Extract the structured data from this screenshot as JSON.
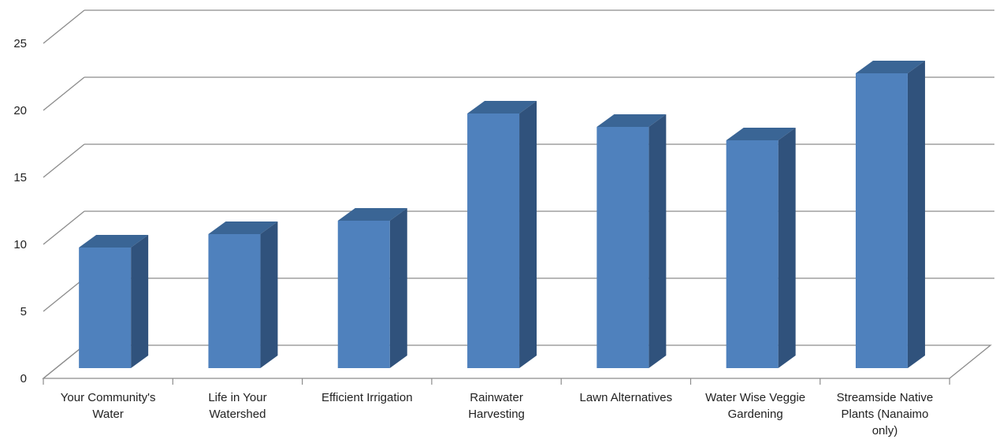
{
  "chart_data": {
    "type": "bar",
    "title": "",
    "xlabel": "",
    "ylabel": "",
    "ylim": [
      0,
      25
    ],
    "yticks": [
      0,
      5,
      10,
      15,
      20,
      25
    ],
    "grid": true,
    "legend": "none",
    "style": "3d-column",
    "categories": [
      [
        "Your Community's",
        "Water"
      ],
      [
        "Life in Your",
        "Watershed"
      ],
      [
        "Efficient Irrigation"
      ],
      [
        "Rainwater",
        "Harvesting"
      ],
      [
        "Lawn Alternatives"
      ],
      [
        "Water Wise Veggie",
        "Gardening"
      ],
      [
        "Streamside Native",
        "Plants (Nanaimo",
        "only)"
      ]
    ],
    "values": [
      9,
      10,
      11,
      19,
      18,
      17,
      22
    ],
    "colors": {
      "bar_front": "#4f81bd",
      "bar_top": "#3a6595",
      "bar_side": "#30527c",
      "grid": "#8c8c8c"
    }
  }
}
